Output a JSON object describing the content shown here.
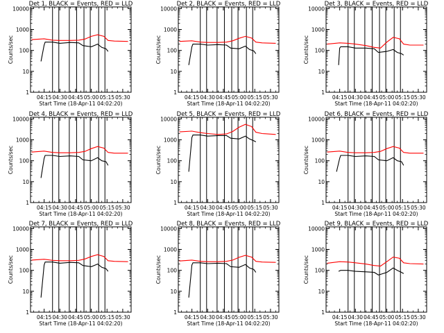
{
  "chart_data": [
    {
      "type": "line",
      "title": "Det 1, BLACK = Events, RED = LLD",
      "xlabel": "Start Time (18-Apr-11 04:02:20)",
      "ylabel": "Counts/sec",
      "yscale": "log",
      "ylim": [
        1,
        12000
      ],
      "x_tick_labels": [
        "04:15",
        "04:30",
        "04:45",
        "05:00",
        "05:15",
        "05:30"
      ],
      "y_tick_labels": [
        "1",
        "10",
        "100",
        "1000",
        "10000"
      ],
      "vlines": [
        "04:23",
        "04:29",
        "04:39",
        "04:46",
        "04:53",
        "04:59",
        "05:07",
        "05:13"
      ],
      "series": [
        {
          "color": "#000000",
          "x": [
            "04:12",
            "04:15",
            "04:16",
            "04:23",
            "04:30",
            "04:40",
            "04:48",
            "04:52",
            "05:00",
            "05:06",
            "05:10",
            "05:14",
            "05:16"
          ],
          "y": [
            30,
            180,
            250,
            250,
            220,
            240,
            230,
            170,
            150,
            200,
            140,
            120,
            90
          ]
        },
        {
          "color": "#ff0000",
          "x": [
            "04:03",
            "04:15",
            "04:23",
            "04:30",
            "04:40",
            "04:48",
            "04:54",
            "05:00",
            "05:06",
            "05:12",
            "05:16",
            "05:22",
            "05:35"
          ],
          "y": [
            330,
            360,
            310,
            300,
            300,
            310,
            350,
            470,
            560,
            470,
            300,
            280,
            270
          ]
        }
      ]
    },
    {
      "type": "line",
      "title": "Det 2, BLACK = Events, RED = LLD",
      "xlabel": "Start Time (18-Apr-11 04:02:20)",
      "ylabel": "Counts/sec",
      "yscale": "log",
      "ylim": [
        1,
        12000
      ],
      "x_tick_labels": [
        "04:15",
        "04:30",
        "04:45",
        "05:00",
        "05:15",
        "05:30"
      ],
      "y_tick_labels": [
        "1",
        "10",
        "100",
        "1000",
        "10000"
      ],
      "vlines": [
        "04:23",
        "04:29",
        "04:39",
        "04:46",
        "04:53",
        "04:59",
        "05:07",
        "05:13"
      ],
      "series": [
        {
          "color": "#000000",
          "x": [
            "04:12",
            "04:15",
            "04:16",
            "04:23",
            "04:30",
            "04:40",
            "04:48",
            "04:52",
            "05:00",
            "05:06",
            "05:10",
            "05:14",
            "05:16"
          ],
          "y": [
            20,
            150,
            200,
            200,
            180,
            190,
            180,
            130,
            120,
            160,
            110,
            95,
            70
          ]
        },
        {
          "color": "#ff0000",
          "x": [
            "04:03",
            "04:15",
            "04:23",
            "04:30",
            "04:40",
            "04:48",
            "04:54",
            "05:00",
            "05:06",
            "05:12",
            "05:16",
            "05:22",
            "05:35"
          ],
          "y": [
            270,
            290,
            250,
            240,
            240,
            250,
            290,
            380,
            470,
            390,
            250,
            230,
            220
          ]
        }
      ]
    },
    {
      "type": "line",
      "title": "Det 3, BLACK = Events, RED = LLD",
      "xlabel": "Start Time (18-Apr-11 04:02:20)",
      "ylabel": "Counts/sec",
      "yscale": "log",
      "ylim": [
        1,
        12000
      ],
      "x_tick_labels": [
        "04:15",
        "04:30",
        "04:45",
        "05:00",
        "05:15",
        "05:30"
      ],
      "y_tick_labels": [
        "1",
        "10",
        "100",
        "1000",
        "10000"
      ],
      "vlines": [
        "04:23",
        "04:29",
        "04:39",
        "04:46",
        "04:53",
        "04:59",
        "05:07",
        "05:13"
      ],
      "series": [
        {
          "color": "#000000",
          "x": [
            "04:14",
            "04:15",
            "04:16",
            "04:23",
            "04:30",
            "04:40",
            "04:48",
            "04:52",
            "05:00",
            "05:06",
            "05:10",
            "05:14",
            "05:16"
          ],
          "y": [
            20,
            130,
            150,
            150,
            130,
            130,
            120,
            80,
            90,
            110,
            80,
            70,
            60
          ]
        },
        {
          "color": "#ff0000",
          "x": [
            "04:03",
            "04:15",
            "04:23",
            "04:30",
            "04:40",
            "04:48",
            "04:54",
            "05:00",
            "05:06",
            "05:12",
            "05:16",
            "05:22",
            "05:35"
          ],
          "y": [
            200,
            230,
            220,
            200,
            170,
            140,
            130,
            250,
            420,
            360,
            200,
            180,
            180
          ]
        }
      ]
    },
    {
      "type": "line",
      "title": "Det 4, BLACK = Events, RED = LLD",
      "xlabel": "Start Time (18-Apr-11 04:02:20)",
      "ylabel": "Counts/sec",
      "yscale": "log",
      "ylim": [
        1,
        12000
      ],
      "x_tick_labels": [
        "04:15",
        "04:30",
        "04:45",
        "05:00",
        "05:15",
        "05:30"
      ],
      "y_tick_labels": [
        "1",
        "10",
        "100",
        "1000",
        "10000"
      ],
      "vlines": [
        "04:23",
        "04:29",
        "04:39",
        "04:46",
        "04:53",
        "04:59",
        "05:07",
        "05:13"
      ],
      "series": [
        {
          "color": "#000000",
          "x": [
            "04:12",
            "04:15",
            "04:16",
            "04:23",
            "04:30",
            "04:40",
            "04:48",
            "04:52",
            "05:00",
            "05:06",
            "05:10",
            "05:14",
            "05:16"
          ],
          "y": [
            15,
            130,
            180,
            180,
            160,
            170,
            160,
            110,
            100,
            140,
            100,
            90,
            60
          ]
        },
        {
          "color": "#ff0000",
          "x": [
            "04:03",
            "04:15",
            "04:23",
            "04:30",
            "04:40",
            "04:48",
            "04:54",
            "05:00",
            "05:06",
            "05:12",
            "05:16",
            "05:22",
            "05:35"
          ],
          "y": [
            260,
            290,
            250,
            240,
            240,
            250,
            280,
            380,
            480,
            400,
            250,
            230,
            230
          ]
        }
      ]
    },
    {
      "type": "line",
      "title": "Det 5, BLACK = Events, RED = LLD",
      "xlabel": "Start Time (18-Apr-11 04:02:20)",
      "ylabel": "Counts/sec",
      "yscale": "log",
      "ylim": [
        1,
        12000
      ],
      "x_tick_labels": [
        "04:15",
        "04:30",
        "04:45",
        "05:00",
        "05:15",
        "05:30"
      ],
      "y_tick_labels": [
        "1",
        "10",
        "100",
        "1000",
        "10000"
      ],
      "vlines": [
        "04:23",
        "04:29",
        "04:39",
        "04:46",
        "04:53",
        "04:59",
        "05:07",
        "05:13"
      ],
      "series": [
        {
          "color": "#000000",
          "x": [
            "04:12",
            "04:15",
            "04:16",
            "04:23",
            "04:30",
            "04:40",
            "04:48",
            "04:52",
            "05:00",
            "05:06",
            "05:10",
            "05:14",
            "05:16"
          ],
          "y": [
            30,
            1300,
            1700,
            1700,
            1500,
            1600,
            1600,
            1200,
            1100,
            1500,
            1100,
            900,
            800
          ]
        },
        {
          "color": "#ff0000",
          "x": [
            "04:03",
            "04:15",
            "04:23",
            "04:30",
            "04:40",
            "04:48",
            "04:54",
            "05:00",
            "05:06",
            "05:12",
            "05:16",
            "05:22",
            "05:35"
          ],
          "y": [
            2400,
            2600,
            2200,
            2000,
            1800,
            1900,
            2500,
            4000,
            5500,
            4300,
            2300,
            2000,
            1800
          ]
        }
      ]
    },
    {
      "type": "line",
      "title": "Det 6, BLACK = Events, RED = LLD",
      "xlabel": "Start Time (18-Apr-11 04:02:20)",
      "ylabel": "Counts/sec",
      "yscale": "log",
      "ylim": [
        1,
        12000
      ],
      "x_tick_labels": [
        "04:15",
        "04:30",
        "04:45",
        "05:00",
        "05:15",
        "05:30"
      ],
      "y_tick_labels": [
        "1",
        "10",
        "100",
        "1000",
        "10000"
      ],
      "vlines": [
        "04:23",
        "04:29",
        "04:39",
        "04:46",
        "04:53",
        "04:59",
        "05:07",
        "05:13"
      ],
      "series": [
        {
          "color": "#000000",
          "x": [
            "04:12",
            "04:15",
            "04:16",
            "04:23",
            "04:30",
            "04:40",
            "04:48",
            "04:52",
            "05:00",
            "05:06",
            "05:10",
            "05:14",
            "05:16"
          ],
          "y": [
            30,
            130,
            180,
            180,
            160,
            170,
            160,
            110,
            100,
            140,
            100,
            90,
            60
          ]
        },
        {
          "color": "#ff0000",
          "x": [
            "04:03",
            "04:15",
            "04:23",
            "04:30",
            "04:40",
            "04:48",
            "04:54",
            "05:00",
            "05:06",
            "05:12",
            "05:16",
            "05:22",
            "05:35"
          ],
          "y": [
            260,
            290,
            250,
            240,
            240,
            250,
            280,
            380,
            480,
            400,
            250,
            230,
            230
          ]
        }
      ]
    },
    {
      "type": "line",
      "title": "Det 7, BLACK = Events, RED = LLD",
      "xlabel": "Start Time (18-Apr-11 04:02:20)",
      "ylabel": "Counts/sec",
      "yscale": "log",
      "ylim": [
        1,
        12000
      ],
      "x_tick_labels": [
        "04:15",
        "04:30",
        "04:45",
        "05:00",
        "05:15",
        "05:30"
      ],
      "y_tick_labels": [
        "1",
        "10",
        "100",
        "1000",
        "10000"
      ],
      "vlines": [
        "04:23",
        "04:29",
        "04:39",
        "04:46",
        "04:53",
        "04:59",
        "05:07",
        "05:13"
      ],
      "series": [
        {
          "color": "#000000",
          "x": [
            "04:12",
            "04:15",
            "04:16",
            "04:23",
            "04:30",
            "04:40",
            "04:48",
            "04:52",
            "05:00",
            "05:06",
            "05:10",
            "05:14",
            "05:16"
          ],
          "y": [
            5,
            180,
            250,
            250,
            220,
            240,
            230,
            170,
            150,
            200,
            140,
            120,
            90
          ]
        },
        {
          "color": "#ff0000",
          "x": [
            "04:03",
            "04:15",
            "04:23",
            "04:30",
            "04:40",
            "04:48",
            "04:54",
            "05:00",
            "05:06",
            "05:12",
            "05:16",
            "05:22",
            "05:35"
          ],
          "y": [
            310,
            340,
            300,
            290,
            290,
            300,
            350,
            460,
            560,
            460,
            290,
            270,
            260
          ]
        }
      ]
    },
    {
      "type": "line",
      "title": "Det 8, BLACK = Events, RED = LLD",
      "xlabel": "Start Time (18-Apr-11 04:02:20)",
      "ylabel": "Counts/sec",
      "yscale": "log",
      "ylim": [
        1,
        12000
      ],
      "x_tick_labels": [
        "04:15",
        "04:30",
        "04:45",
        "05:00",
        "05:15",
        "05:30"
      ],
      "y_tick_labels": [
        "1",
        "10",
        "100",
        "1000",
        "10000"
      ],
      "vlines": [
        "04:23",
        "04:29",
        "04:39",
        "04:46",
        "04:53",
        "04:59",
        "05:07",
        "05:13"
      ],
      "series": [
        {
          "color": "#000000",
          "x": [
            "04:12",
            "04:15",
            "04:16",
            "04:23",
            "04:30",
            "04:40",
            "04:48",
            "04:52",
            "05:00",
            "05:06",
            "05:10",
            "05:14",
            "05:16"
          ],
          "y": [
            5,
            180,
            230,
            230,
            210,
            220,
            210,
            150,
            140,
            190,
            130,
            110,
            80
          ]
        },
        {
          "color": "#ff0000",
          "x": [
            "04:03",
            "04:15",
            "04:23",
            "04:30",
            "04:40",
            "04:48",
            "04:54",
            "05:00",
            "05:06",
            "05:12",
            "05:16",
            "05:22",
            "05:35"
          ],
          "y": [
            280,
            310,
            270,
            260,
            260,
            270,
            310,
            420,
            520,
            430,
            270,
            250,
            240
          ]
        }
      ]
    },
    {
      "type": "line",
      "title": "Det 9, BLACK = Events, RED = LLD",
      "xlabel": "Start Time (18-Apr-11 04:02:20)",
      "ylabel": "Counts/sec",
      "yscale": "log",
      "ylim": [
        1,
        12000
      ],
      "x_tick_labels": [
        "04:15",
        "04:30",
        "04:45",
        "05:00",
        "05:15",
        "05:30"
      ],
      "y_tick_labels": [
        "1",
        "10",
        "100",
        "1000",
        "10000"
      ],
      "vlines": [
        "04:23",
        "04:29",
        "04:39",
        "04:46",
        "04:53",
        "04:59",
        "05:07",
        "05:13"
      ],
      "series": [
        {
          "color": "#000000",
          "x": [
            "04:14",
            "04:15",
            "04:16",
            "04:23",
            "04:30",
            "04:40",
            "04:48",
            "04:52",
            "05:00",
            "05:06",
            "05:10",
            "05:14",
            "05:16"
          ],
          "y": [
            90,
            95,
            100,
            100,
            90,
            85,
            80,
            60,
            80,
            130,
            100,
            80,
            70
          ]
        },
        {
          "color": "#ff0000",
          "x": [
            "04:03",
            "04:15",
            "04:23",
            "04:30",
            "04:40",
            "04:48",
            "04:54",
            "05:00",
            "05:06",
            "05:12",
            "05:16",
            "05:22",
            "05:35"
          ],
          "y": [
            220,
            260,
            250,
            230,
            200,
            170,
            160,
            260,
            430,
            380,
            230,
            210,
            200
          ]
        }
      ]
    }
  ]
}
